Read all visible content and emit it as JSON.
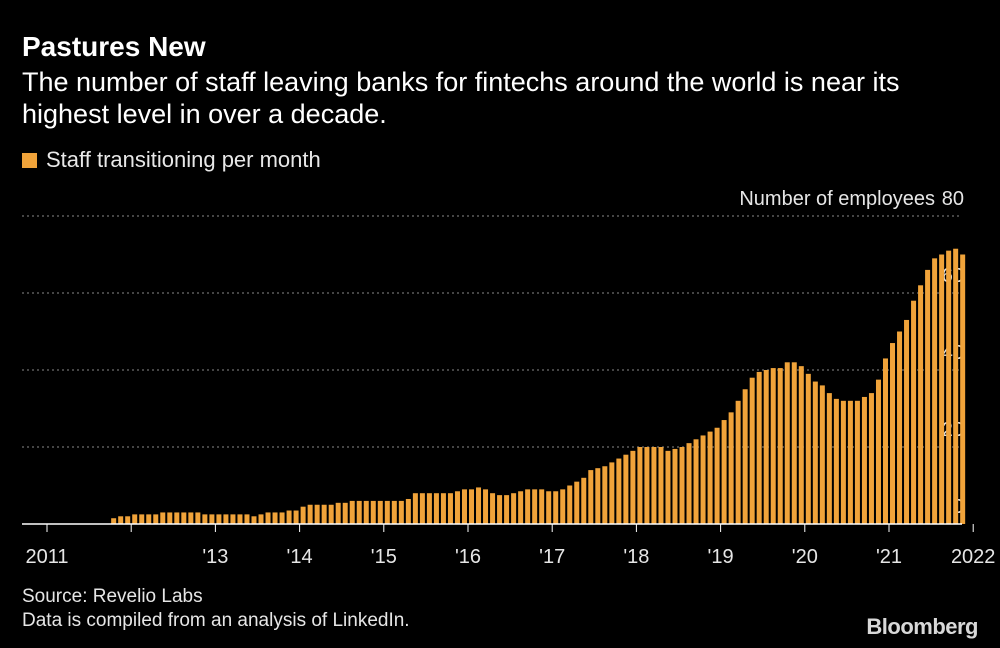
{
  "header": {
    "title": "Pastures New",
    "subtitle": "The number of staff leaving banks for fintechs around the world is near its highest level in over a decade."
  },
  "legend": {
    "label": "Staff transitioning per month",
    "color": "#f0a33a"
  },
  "footer": {
    "source": "Source: Revelio Labs",
    "note": "Data is compiled from an analysis of LinkedIn.",
    "brand": "Bloomberg"
  },
  "colors": {
    "background": "#000000",
    "bar": "#f0a33a",
    "grid": "#8a8a8a",
    "axis": "#ffffff"
  },
  "chart_data": {
    "type": "bar",
    "title": "Pastures New",
    "ylabel": "Number of employees",
    "ylim": [
      0,
      80
    ],
    "yticks": [
      0,
      20,
      40,
      60,
      80
    ],
    "grid": true,
    "y_axis_side": "right",
    "legend_position": "top-left",
    "x_tick_labels": [
      "2011",
      "'13",
      "'14",
      "'15",
      "'16",
      "'17",
      "'18",
      "'19",
      "'20",
      "'21",
      "2022"
    ],
    "series": [
      {
        "name": "Staff transitioning per month",
        "start": "2011-10",
        "frequency": "monthly",
        "values": [
          1.5,
          2,
          2,
          2.5,
          2.5,
          2.5,
          2.5,
          3,
          3,
          3,
          3,
          3,
          3,
          2.5,
          2.5,
          2.5,
          2.5,
          2.5,
          2.5,
          2.5,
          2,
          2.5,
          3,
          3,
          3,
          3.5,
          3.5,
          4.5,
          5,
          5,
          5,
          5,
          5.5,
          5.5,
          6,
          6,
          6,
          6,
          6,
          6,
          6,
          6,
          6.5,
          8,
          8,
          8,
          8,
          8,
          8,
          8.5,
          9,
          9,
          9.5,
          9,
          8,
          7.5,
          7.5,
          8,
          8.5,
          9,
          9,
          9,
          8.5,
          8.5,
          9,
          10,
          11,
          12,
          14,
          14.5,
          15,
          16,
          17,
          18,
          19,
          20,
          20,
          20,
          20,
          19,
          19.5,
          20,
          21,
          22,
          23,
          24,
          25,
          27,
          29,
          32,
          35,
          38,
          39.5,
          40,
          40.5,
          40.5,
          42,
          42,
          41,
          39,
          37,
          36,
          34,
          32.5,
          32,
          32,
          32,
          33,
          34,
          37.5,
          43,
          47,
          50,
          53,
          58,
          62,
          66,
          69,
          70,
          71,
          71.5,
          70
        ]
      }
    ]
  }
}
